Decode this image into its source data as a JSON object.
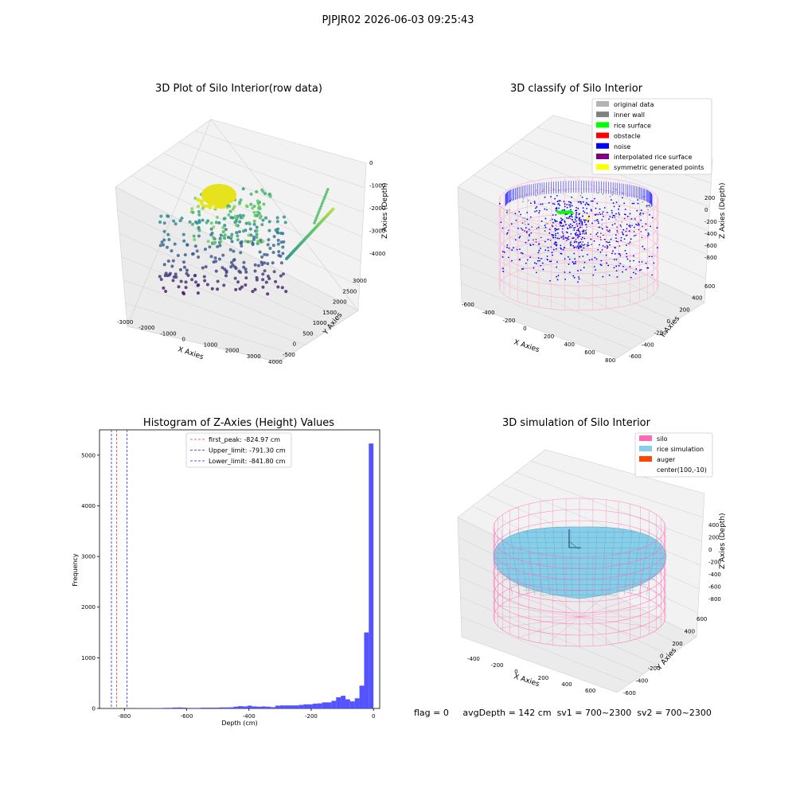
{
  "suptitle": "PJPJR02 2026-06-03 09:25:43",
  "footer": {
    "flag": "flag = 0",
    "avg_depth": "avgDepth = 142 cm",
    "sv1": "sv1 = 700~2300",
    "sv2": "sv2 = 700~2300"
  },
  "chart_data": [
    {
      "type": "scatter",
      "projection": "3d",
      "title": "3D Plot of Silo Interior(row data)",
      "xlabel": "X Axies",
      "ylabel": "Y Axies",
      "zlabel": "Z Axies (Depth)",
      "xticks": [
        "-3000",
        "-2000",
        "-1000",
        "0",
        "1000",
        "2000",
        "3000",
        "4000"
      ],
      "yticks": [
        "-500",
        "0",
        "500",
        "1000",
        "1500",
        "2000",
        "2500",
        "3000"
      ],
      "zticks": [
        "-4000",
        "-3000",
        "-2000",
        "-1000",
        "0"
      ],
      "colormap": "viridis",
      "grid": true
    },
    {
      "type": "scatter",
      "projection": "3d",
      "title": "3D classify of Silo Interior",
      "xlabel": "X Axies",
      "ylabel": "Y Axies",
      "zlabel": "Z Axies (Depth)",
      "xticks": [
        "-600",
        "-400",
        "-200",
        "0",
        "200",
        "400",
        "600",
        "800"
      ],
      "yticks": [
        "-600",
        "-400",
        "-200",
        "0",
        "200",
        "400",
        "600"
      ],
      "zticks": [
        "-800",
        "-600",
        "-400",
        "-200",
        "0",
        "200"
      ],
      "legend": [
        {
          "label": "original data",
          "color": "#b3b3b3"
        },
        {
          "label": "inner wall",
          "color": "#808080"
        },
        {
          "label": "rice surface",
          "color": "#00ff00"
        },
        {
          "label": "obstacle",
          "color": "#ff0000"
        },
        {
          "label": "noise",
          "color": "#0000ff"
        },
        {
          "label": "interpolated rice surface",
          "color": "#800080"
        },
        {
          "label": "symmetric generated points",
          "color": "#ffff00"
        }
      ],
      "legend_position": "top-right",
      "grid": true
    },
    {
      "type": "bar",
      "subtype": "histogram",
      "title": "Histogram of Z-Axies (Height) Values",
      "xlabel": "Depth (cm)",
      "ylabel": "Frequency",
      "xlim": [
        -880,
        20
      ],
      "ylim": [
        0,
        5500
      ],
      "xticks": [
        "-800",
        "-600",
        "-400",
        "-200",
        "0"
      ],
      "yticks": [
        "0",
        "1000",
        "2000",
        "3000",
        "4000",
        "5000"
      ],
      "bin_width": 15,
      "bins": [
        [
          -765,
          5
        ],
        [
          -750,
          5
        ],
        [
          -735,
          5
        ],
        [
          -720,
          5
        ],
        [
          -705,
          5
        ],
        [
          -690,
          5
        ],
        [
          -675,
          12
        ],
        [
          -660,
          12
        ],
        [
          -645,
          18
        ],
        [
          -630,
          20
        ],
        [
          -615,
          15
        ],
        [
          -600,
          10
        ],
        [
          -585,
          10
        ],
        [
          -570,
          10
        ],
        [
          -555,
          15
        ],
        [
          -540,
          15
        ],
        [
          -525,
          15
        ],
        [
          -510,
          15
        ],
        [
          -495,
          20
        ],
        [
          -480,
          20
        ],
        [
          -465,
          22
        ],
        [
          -450,
          35
        ],
        [
          -435,
          45
        ],
        [
          -420,
          40
        ],
        [
          -405,
          55
        ],
        [
          -390,
          40
        ],
        [
          -375,
          35
        ],
        [
          -360,
          40
        ],
        [
          -345,
          35
        ],
        [
          -330,
          25
        ],
        [
          -315,
          55
        ],
        [
          -300,
          60
        ],
        [
          -285,
          60
        ],
        [
          -270,
          60
        ],
        [
          -255,
          60
        ],
        [
          -240,
          70
        ],
        [
          -225,
          80
        ],
        [
          -210,
          80
        ],
        [
          -195,
          95
        ],
        [
          -180,
          100
        ],
        [
          -165,
          120
        ],
        [
          -150,
          120
        ],
        [
          -135,
          150
        ],
        [
          -120,
          220
        ],
        [
          -105,
          250
        ],
        [
          -90,
          180
        ],
        [
          -75,
          140
        ],
        [
          -60,
          200
        ],
        [
          -45,
          450
        ],
        [
          -30,
          1500
        ],
        [
          -15,
          5230
        ]
      ],
      "bar_color": "#4a4aff",
      "vlines": [
        {
          "label": "first_peak: -824.97 cm",
          "x": -824.97,
          "color": "#ff3030",
          "style": "dashed"
        },
        {
          "label": "Upper_limit: -791.30 cm",
          "x": -791.3,
          "color": "#2020ff",
          "style": "dashed"
        },
        {
          "label": "Lower_limit: -841.80 cm",
          "x": -841.8,
          "color": "#2020ff",
          "style": "dashed"
        }
      ],
      "legend_position": "top-center",
      "grid": false
    },
    {
      "type": "scatter",
      "projection": "3d",
      "title": "3D simulation of Silo Interior",
      "xlabel": "X Axies",
      "ylabel": "Y Axies",
      "zlabel": "Z Axies (Depth)",
      "xticks": [
        "-400",
        "-200",
        "0",
        "200",
        "400",
        "600"
      ],
      "yticks": [
        "-600",
        "-400",
        "-200",
        "0",
        "200",
        "400",
        "600"
      ],
      "zticks": [
        "-800",
        "-600",
        "-400",
        "-200",
        "0",
        "200",
        "400"
      ],
      "legend": [
        {
          "label": "silo",
          "color": "#ff69b4"
        },
        {
          "label": "rice simulation",
          "color": "#87ceeb"
        },
        {
          "label": "auger",
          "color": "#ff4500"
        },
        {
          "label": "center(100,-10)",
          "color": ""
        }
      ],
      "legend_position": "top-right",
      "grid": true
    }
  ]
}
